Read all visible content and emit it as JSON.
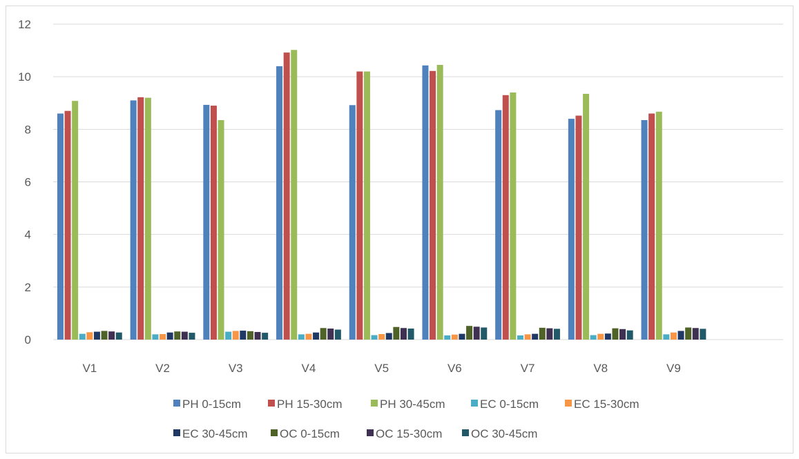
{
  "chart_data": {
    "type": "bar",
    "title": "",
    "xlabel": "",
    "ylabel": "",
    "ylim": [
      0,
      12
    ],
    "yticks": [
      0,
      2,
      4,
      6,
      8,
      10,
      12
    ],
    "grid": true,
    "legend_position": "bottom",
    "categories": [
      "V1",
      "V2",
      "V3",
      "V4",
      "V5",
      "V6",
      "V7",
      "V8",
      "V9"
    ],
    "series": [
      {
        "name": "PH 0-15cm",
        "color": "#4f81bd",
        "values": [
          8.6,
          9.1,
          8.93,
          10.4,
          8.92,
          10.43,
          8.73,
          8.4,
          8.35
        ]
      },
      {
        "name": "PH 15-30cm",
        "color": "#c0504d",
        "values": [
          8.7,
          9.22,
          8.9,
          10.92,
          10.2,
          10.22,
          9.3,
          8.52,
          8.6
        ]
      },
      {
        "name": "PH 30-45cm",
        "color": "#9bbb59",
        "values": [
          9.08,
          9.2,
          8.35,
          11.02,
          10.2,
          10.45,
          9.4,
          9.35,
          8.67
        ]
      },
      {
        "name": "EC 0-15cm",
        "color": "#4bacc6",
        "values": [
          0.22,
          0.2,
          0.3,
          0.2,
          0.17,
          0.16,
          0.16,
          0.17,
          0.2
        ]
      },
      {
        "name": "EC 15-30cm",
        "color": "#f79646",
        "values": [
          0.28,
          0.21,
          0.33,
          0.22,
          0.21,
          0.19,
          0.2,
          0.22,
          0.27
        ]
      },
      {
        "name": "EC 30-45cm",
        "color": "#1f3864",
        "values": [
          0.3,
          0.27,
          0.34,
          0.27,
          0.25,
          0.22,
          0.22,
          0.23,
          0.33
        ]
      },
      {
        "name": "OC 0-15cm",
        "color": "#4f6228",
        "values": [
          0.33,
          0.31,
          0.32,
          0.44,
          0.48,
          0.52,
          0.45,
          0.43,
          0.46
        ]
      },
      {
        "name": "OC 15-30cm",
        "color": "#3f3151",
        "values": [
          0.31,
          0.3,
          0.29,
          0.42,
          0.44,
          0.49,
          0.43,
          0.4,
          0.44
        ]
      },
      {
        "name": "OC 30-45cm",
        "color": "#215968",
        "values": [
          0.27,
          0.26,
          0.26,
          0.38,
          0.42,
          0.46,
          0.41,
          0.35,
          0.41
        ]
      }
    ]
  }
}
